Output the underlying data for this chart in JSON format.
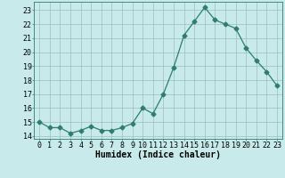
{
  "x": [
    0,
    1,
    2,
    3,
    4,
    5,
    6,
    7,
    8,
    9,
    10,
    11,
    12,
    13,
    14,
    15,
    16,
    17,
    18,
    19,
    20,
    21,
    22,
    23
  ],
  "y": [
    15.0,
    14.6,
    14.6,
    14.2,
    14.4,
    14.7,
    14.4,
    14.4,
    14.6,
    14.9,
    16.0,
    15.6,
    17.0,
    18.9,
    21.2,
    22.2,
    23.2,
    22.3,
    22.0,
    21.7,
    20.3,
    19.4,
    18.6,
    17.6
  ],
  "line_color": "#2e7d6e",
  "marker": "D",
  "marker_size": 2.5,
  "bg_color": "#c8eaea",
  "grid_color": "#9bbfbf",
  "xlabel": "Humidex (Indice chaleur)",
  "xlim": [
    -0.5,
    23.5
  ],
  "ylim": [
    13.8,
    23.6
  ],
  "yticks": [
    14,
    15,
    16,
    17,
    18,
    19,
    20,
    21,
    22,
    23
  ],
  "xticks": [
    0,
    1,
    2,
    3,
    4,
    5,
    6,
    7,
    8,
    9,
    10,
    11,
    12,
    13,
    14,
    15,
    16,
    17,
    18,
    19,
    20,
    21,
    22,
    23
  ],
  "xlabel_fontsize": 7,
  "tick_fontsize": 6
}
